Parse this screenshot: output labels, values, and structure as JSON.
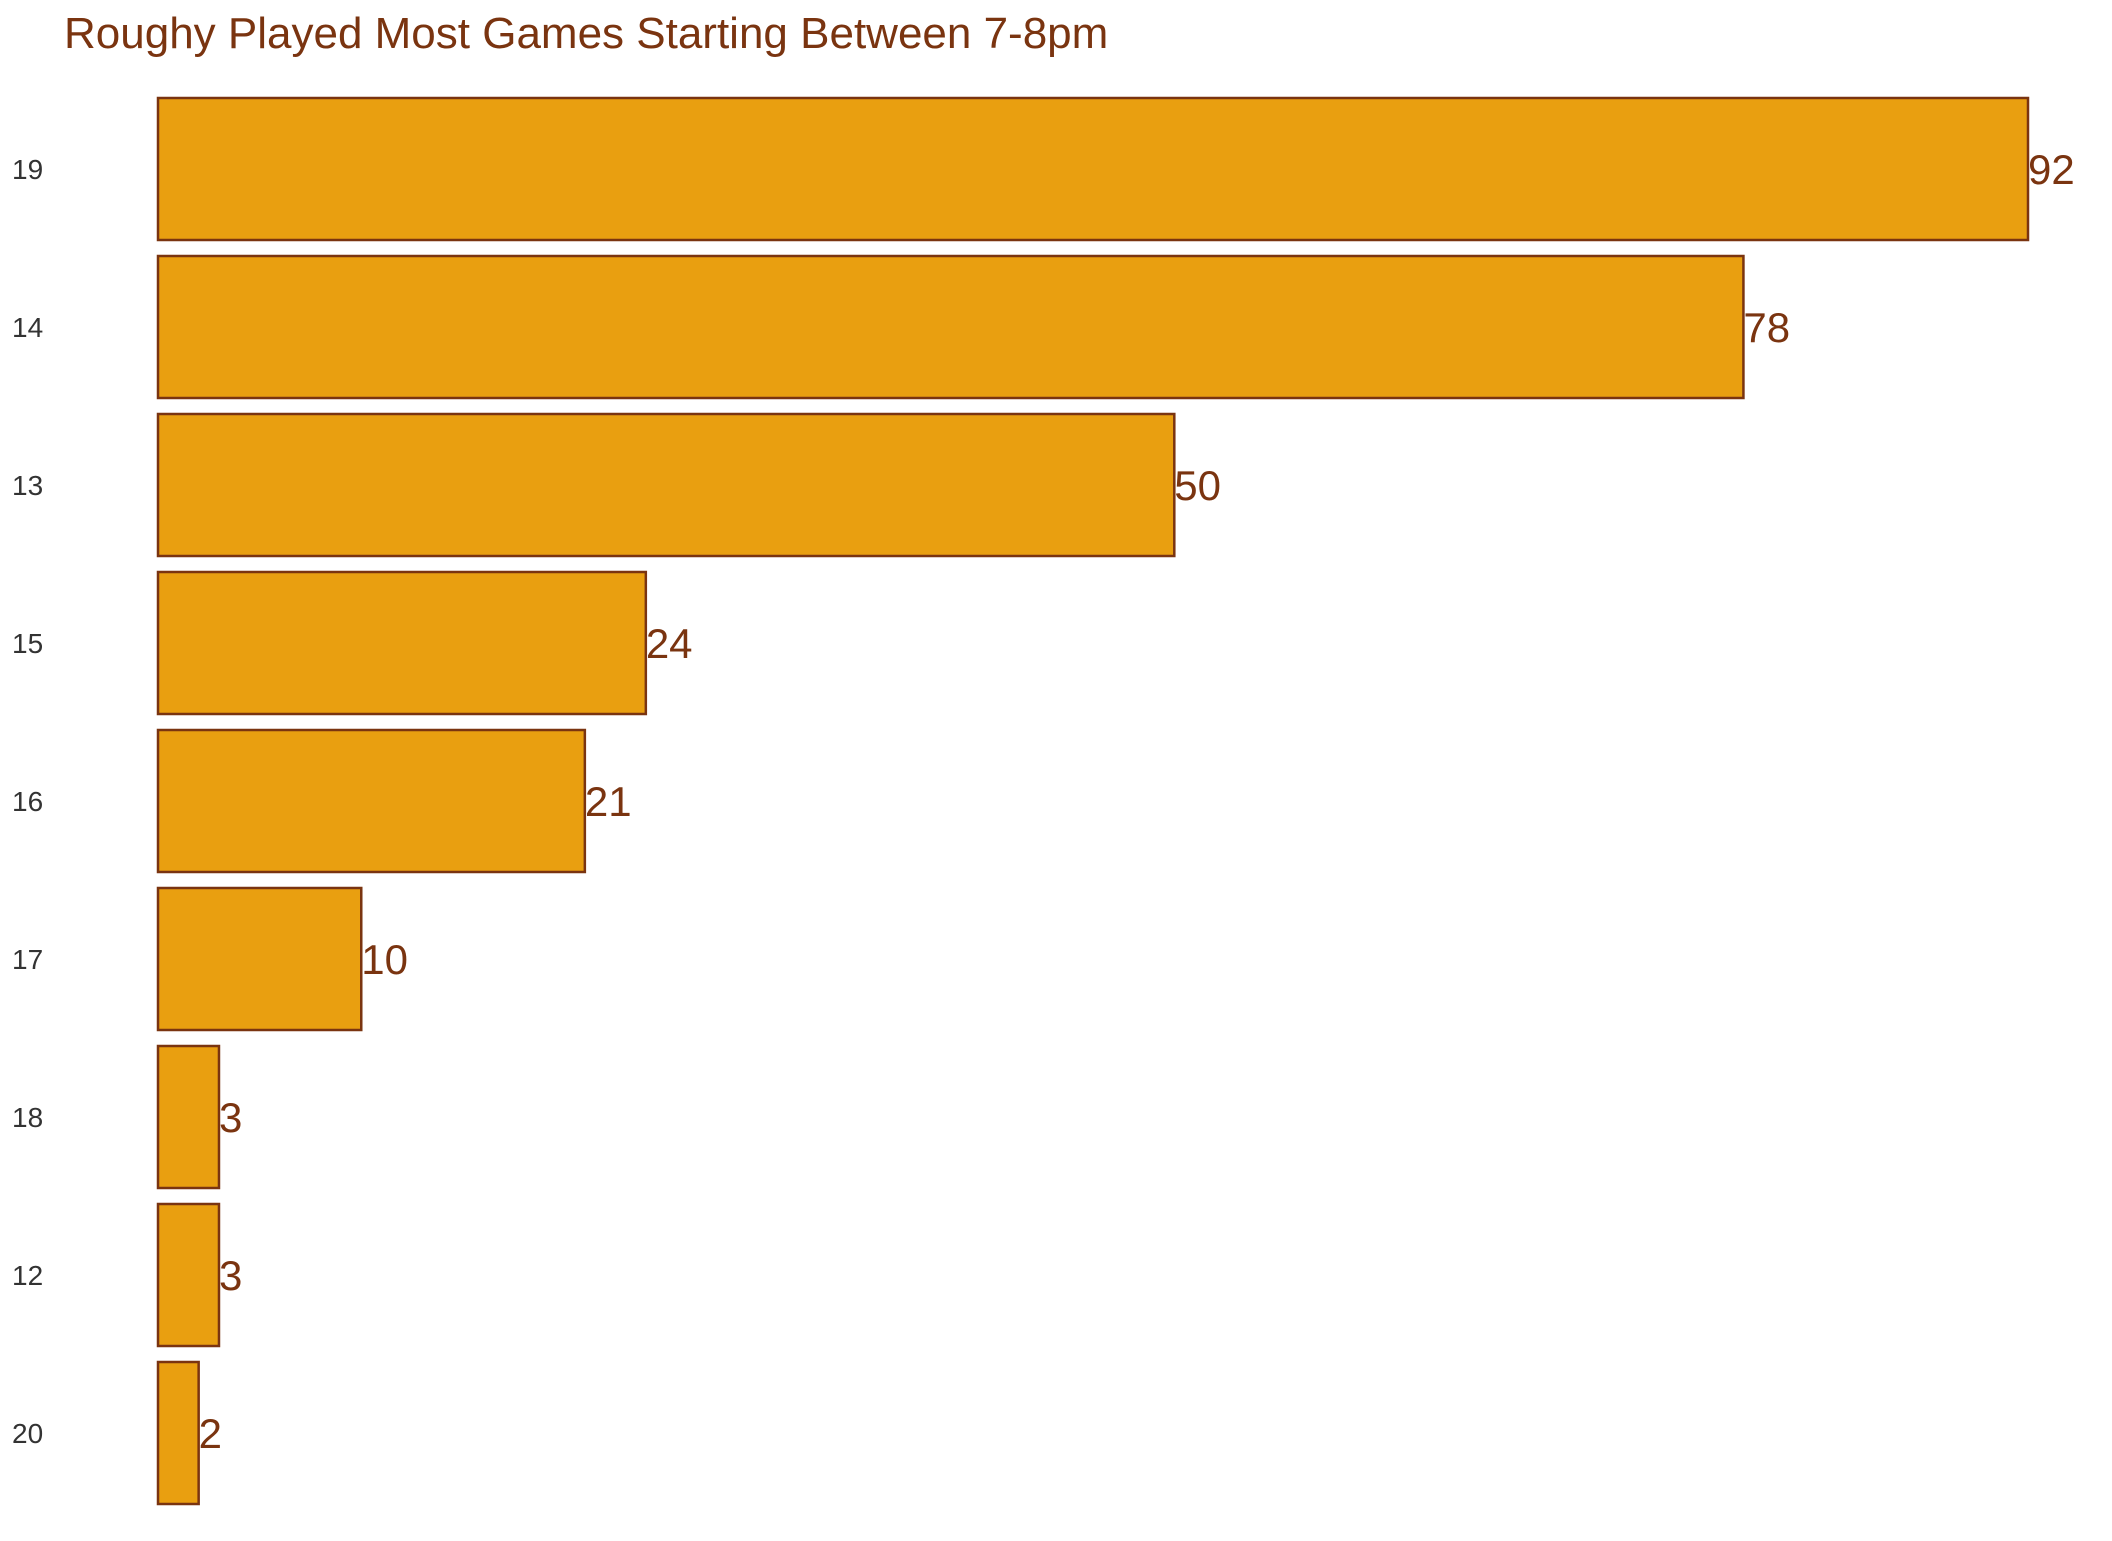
{
  "chart_data": {
    "type": "bar",
    "orientation": "horizontal",
    "title": "Roughy Played Most Games Starting Between 7-8pm",
    "xlabel": "",
    "ylabel": "",
    "categories": [
      "19",
      "14",
      "13",
      "15",
      "16",
      "17",
      "18",
      "12",
      "20"
    ],
    "values": [
      92,
      78,
      50,
      24,
      21,
      10,
      3,
      3,
      2
    ],
    "xlim": [
      0,
      92
    ],
    "grid": false,
    "legend": "none",
    "show_data_labels": true
  },
  "colors": {
    "bar_fill": "#E99F10",
    "bar_stroke": "#7A3410",
    "title": "#7A3410",
    "data_label": "#7A3410",
    "tick_label": "#333333",
    "background": "#FFFFFF"
  }
}
